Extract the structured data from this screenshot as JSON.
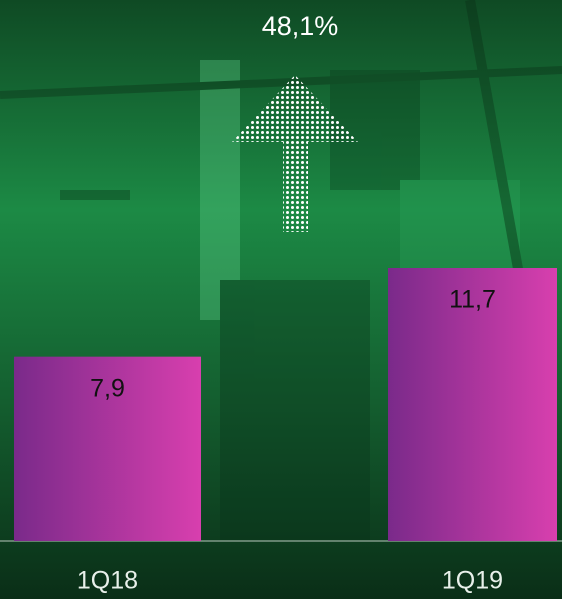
{
  "chart_data": {
    "type": "bar",
    "annotation": "48,1%",
    "categories": [
      "1Q18",
      "1Q19"
    ],
    "values": [
      7.9,
      11.7
    ],
    "value_labels": [
      "7,9",
      "11,7"
    ],
    "color": "purple-magenta gradient"
  }
}
